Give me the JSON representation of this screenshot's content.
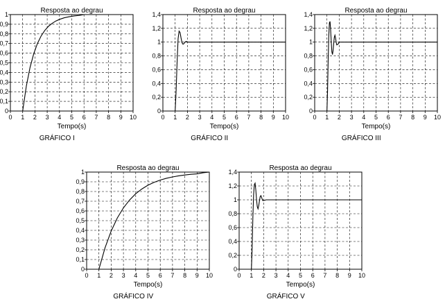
{
  "chart_data": [
    {
      "type": "line",
      "title": "Resposta ao degrau",
      "xlabel": "Tempo(s)",
      "ylabel": "",
      "caption": "GRÁFICO I",
      "xlim": [
        0,
        10
      ],
      "ylim": [
        0,
        1
      ],
      "xticks": [
        "0",
        "1",
        "2",
        "3",
        "4",
        "5",
        "6",
        "7",
        "8",
        "9",
        "10"
      ],
      "yticks": [
        "0",
        "0,1",
        "0,2",
        "0,3",
        "0,4",
        "0,5",
        "0,6",
        "0,7",
        "0,8",
        "0,9",
        "1"
      ],
      "grid": true,
      "series": [
        {
          "x": [
            1.0,
            1.3,
            1.6,
            1.9,
            2.2,
            2.5,
            2.8,
            3.1,
            3.4,
            3.7,
            4.0,
            4.4,
            4.8,
            5.2,
            5.6,
            6.0,
            10.0
          ],
          "y": [
            0,
            0.259,
            0.451,
            0.593,
            0.699,
            0.777,
            0.835,
            0.878,
            0.909,
            0.933,
            0.95,
            0.967,
            0.978,
            0.986,
            0.991,
            1.0,
            1.0
          ]
        }
      ]
    },
    {
      "type": "line",
      "title": "Resposta ao degrau",
      "xlabel": "Tempo(s)",
      "ylabel": "",
      "caption": "GRÁFICO II",
      "xlim": [
        0,
        10
      ],
      "ylim": [
        0,
        1.4
      ],
      "xticks": [
        "0",
        "1",
        "2",
        "3",
        "4",
        "5",
        "6",
        "7",
        "8",
        "9",
        "10"
      ],
      "yticks": [
        "0",
        "0,2",
        "0,4",
        "0,6",
        "0,8",
        "1",
        "1,2",
        "1,4"
      ],
      "grid": true,
      "series": [
        {
          "x": [
            1.0,
            1.08,
            1.16,
            1.24,
            1.32,
            1.4,
            1.48,
            1.56,
            1.64,
            1.72,
            1.8,
            1.9,
            2.0,
            2.2,
            10.0
          ],
          "y": [
            0,
            0.3,
            0.72,
            1.05,
            1.16,
            1.14,
            1.06,
            0.99,
            0.97,
            0.98,
            1.0,
            1.01,
            1.0,
            1.0,
            1.0
          ]
        }
      ]
    },
    {
      "type": "line",
      "title": "Resposta ao degrau",
      "xlabel": "Tempo(s)",
      "ylabel": "",
      "caption": "GRÁFICO III",
      "xlim": [
        0,
        10
      ],
      "ylim": [
        0,
        1.4
      ],
      "xticks": [
        "0",
        "1",
        "2",
        "3",
        "4",
        "5",
        "6",
        "7",
        "8",
        "9",
        "10"
      ],
      "yticks": [
        "0",
        "0,2",
        "0,4",
        "0,6",
        "0,8",
        "1",
        "1,2",
        "1,4"
      ],
      "grid": true,
      "series": [
        {
          "x": [
            1.0,
            1.05,
            1.1,
            1.15,
            1.2,
            1.25,
            1.3,
            1.35,
            1.4,
            1.45,
            1.5,
            1.55,
            1.6,
            1.65,
            1.7,
            1.75,
            1.8,
            1.9,
            2.0,
            2.2,
            10.0
          ],
          "y": [
            0,
            0.3,
            0.75,
            1.1,
            1.28,
            1.3,
            1.18,
            1.0,
            0.86,
            0.82,
            0.88,
            0.98,
            1.07,
            1.1,
            1.06,
            1.0,
            0.96,
            0.97,
            1.0,
            1.0,
            1.0
          ]
        }
      ]
    },
    {
      "type": "line",
      "title": "Resposta ao degrau",
      "xlabel": "Tempo(s)",
      "ylabel": "",
      "caption": "GRÁFICO IV",
      "xlim": [
        0,
        10
      ],
      "ylim": [
        0,
        1
      ],
      "xticks": [
        "0",
        "1",
        "2",
        "3",
        "4",
        "5",
        "6",
        "7",
        "8",
        "9",
        "10"
      ],
      "yticks": [
        "0",
        "0,1",
        "0,2",
        "0,3",
        "0,4",
        "0,5",
        "0,6",
        "0,7",
        "0,8",
        "0,9",
        "1"
      ],
      "grid": true,
      "series": [
        {
          "x": [
            1.0,
            1.5,
            2.0,
            2.5,
            3.0,
            3.5,
            4.0,
            4.5,
            5.0,
            5.5,
            6.0,
            6.5,
            7.0,
            7.5,
            8.0,
            8.5,
            9.0,
            9.5,
            10.0
          ],
          "y": [
            0,
            0.221,
            0.393,
            0.528,
            0.632,
            0.713,
            0.777,
            0.826,
            0.865,
            0.895,
            0.918,
            0.936,
            0.95,
            0.961,
            0.97,
            0.977,
            0.982,
            0.993,
            1.0
          ]
        }
      ]
    },
    {
      "type": "line",
      "title": "Resposta ao degrau",
      "xlabel": "Tempo(s)",
      "ylabel": "",
      "caption": "GRÁFICO V",
      "xlim": [
        0,
        10
      ],
      "ylim": [
        0,
        1.4
      ],
      "xticks": [
        "0",
        "1",
        "2",
        "3",
        "4",
        "5",
        "6",
        "7",
        "8",
        "9",
        "10"
      ],
      "yticks": [
        "0",
        "0,2",
        "0,4",
        "0,6",
        "0,8",
        "1",
        "1,2",
        "1,4"
      ],
      "grid": true,
      "series": [
        {
          "x": [
            1.0,
            1.06,
            1.12,
            1.18,
            1.24,
            1.3,
            1.36,
            1.42,
            1.48,
            1.54,
            1.6,
            1.66,
            1.72,
            1.78,
            1.84,
            1.92,
            2.0,
            2.2,
            10.0
          ],
          "y": [
            0,
            0.3,
            0.75,
            1.08,
            1.22,
            1.24,
            1.14,
            1.0,
            0.9,
            0.87,
            0.92,
            0.99,
            1.05,
            1.06,
            1.03,
            0.99,
            0.99,
            1.0,
            1.0
          ]
        }
      ]
    }
  ]
}
